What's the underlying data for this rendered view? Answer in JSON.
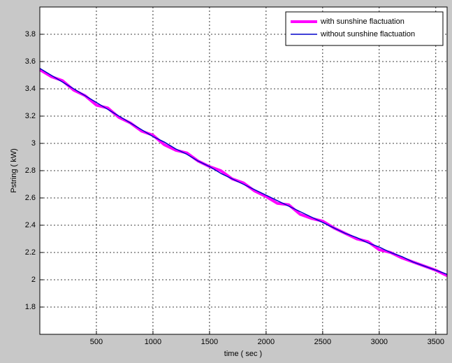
{
  "chart_data": {
    "type": "line",
    "x_label": "time ( sec )",
    "y_label": "Pstring ( kW)",
    "x": [
      0,
      100,
      200,
      300,
      400,
      500,
      600,
      700,
      800,
      900,
      1000,
      1100,
      1200,
      1300,
      1400,
      1500,
      1600,
      1700,
      1800,
      1900,
      2000,
      2100,
      2200,
      2300,
      2400,
      2500,
      2600,
      2700,
      2800,
      2900,
      3000,
      3100,
      3200,
      3300,
      3400,
      3500,
      3600
    ],
    "series": [
      {
        "name": "with sunshine flactuation",
        "color": "#ff00ff",
        "width": 4,
        "values": [
          3.54,
          3.49,
          3.46,
          3.39,
          3.35,
          3.28,
          3.26,
          3.19,
          3.15,
          3.09,
          3.06,
          2.99,
          2.95,
          2.93,
          2.87,
          2.83,
          2.8,
          2.74,
          2.71,
          2.65,
          2.61,
          2.56,
          2.55,
          2.48,
          2.45,
          2.43,
          2.38,
          2.34,
          2.3,
          2.28,
          2.22,
          2.2,
          2.16,
          2.13,
          2.1,
          2.07,
          2.03
        ]
      },
      {
        "name": "without sunshine flactuation",
        "color": "#0000cc",
        "width": 1.5,
        "values": [
          3.55,
          3.5,
          3.45,
          3.4,
          3.35,
          3.3,
          3.25,
          3.2,
          3.15,
          3.1,
          3.05,
          3.01,
          2.96,
          2.92,
          2.87,
          2.83,
          2.78,
          2.74,
          2.7,
          2.66,
          2.62,
          2.58,
          2.54,
          2.5,
          2.46,
          2.42,
          2.38,
          2.34,
          2.31,
          2.27,
          2.24,
          2.2,
          2.17,
          2.13,
          2.1,
          2.07,
          2.04
        ]
      }
    ],
    "xlim": [
      0,
      3600
    ],
    "xticks": [
      500,
      1000,
      1500,
      2000,
      2500,
      3000,
      3500
    ],
    "ylim": [
      1.6,
      4.0
    ],
    "yticks": [
      1.8,
      2,
      2.2,
      2.4,
      2.6,
      2.8,
      3,
      3.2,
      3.4,
      3.6,
      3.8
    ],
    "grid": true,
    "legend": "upper-right"
  }
}
